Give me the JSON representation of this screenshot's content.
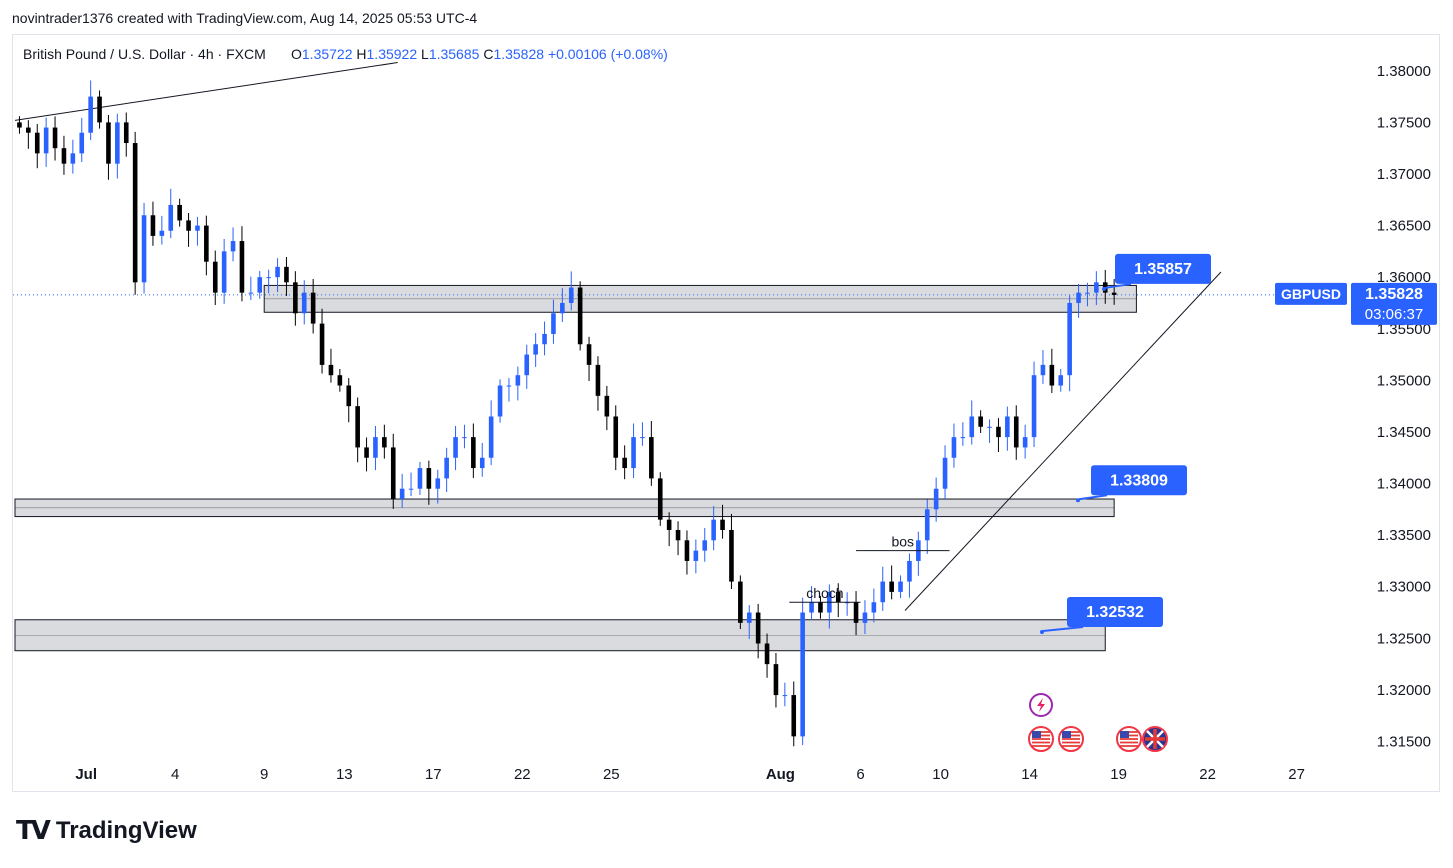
{
  "header": {
    "text": "novintrader1376 created with TradingView.com, Aug 14, 2025 05:53 UTC-4"
  },
  "footer": {
    "logo_mark": "TV",
    "logo_text": "TradingView"
  },
  "colors": {
    "up": "#2962ff",
    "down": "#000000",
    "zone_fill": "#d6d7db",
    "zone_stroke": "#131722",
    "label_bg": "#2962ff"
  },
  "chart_data": {
    "type": "candlestick",
    "symbol_line": "British Pound / U.S. Dollar · 4h · FXCM",
    "ohlc": {
      "o_label": "O",
      "o": "1.35722",
      "h_label": "H",
      "h": "1.35922",
      "l_label": "L",
      "l": "1.35685",
      "c_label": "C",
      "c": "1.35828",
      "change": "+0.00106 (+0.08%)"
    },
    "ylim": [
      1.3135,
      1.3825
    ],
    "y_ticks": [
      "1.38000",
      "1.37500",
      "1.37000",
      "1.36500",
      "1.36000",
      "1.35500",
      "1.35000",
      "1.34500",
      "1.34000",
      "1.33500",
      "1.33000",
      "1.32500",
      "1.32000",
      "1.31500"
    ],
    "x_ticks": [
      {
        "label": "Jul",
        "bold": true,
        "bar": 8
      },
      {
        "label": "4",
        "bold": false,
        "bar": 18
      },
      {
        "label": "9",
        "bold": false,
        "bar": 28
      },
      {
        "label": "13",
        "bold": false,
        "bar": 37
      },
      {
        "label": "17",
        "bold": false,
        "bar": 47
      },
      {
        "label": "22",
        "bold": false,
        "bar": 57
      },
      {
        "label": "25",
        "bold": false,
        "bar": 67
      },
      {
        "label": "Aug",
        "bold": true,
        "bar": 86
      },
      {
        "label": "6",
        "bold": false,
        "bar": 95
      },
      {
        "label": "10",
        "bold": false,
        "bar": 104
      },
      {
        "label": "14",
        "bold": false,
        "bar": 114
      },
      {
        "label": "19",
        "bold": false,
        "bar": 124
      },
      {
        "label": "22",
        "bold": false,
        "bar": 134
      },
      {
        "label": "27",
        "bold": false,
        "bar": 144
      }
    ],
    "bar_count": 158,
    "closes": [
      1.3745,
      1.374,
      1.372,
      1.3745,
      1.3725,
      1.371,
      1.372,
      1.374,
      1.3775,
      1.375,
      1.371,
      1.375,
      1.373,
      1.3595,
      1.366,
      1.364,
      1.3645,
      1.367,
      1.3655,
      1.3645,
      1.365,
      1.3615,
      1.3585,
      1.3625,
      1.3635,
      1.3585,
      1.3585,
      1.36,
      1.36,
      1.361,
      1.3595,
      1.3565,
      1.3585,
      1.3555,
      1.3515,
      1.3505,
      1.3495,
      1.3475,
      1.3435,
      1.3425,
      1.3445,
      1.3435,
      1.3385,
      1.3395,
      1.3395,
      1.3415,
      1.3395,
      1.3405,
      1.3425,
      1.3445,
      1.3445,
      1.3415,
      1.3425,
      1.3465,
      1.3495,
      1.3495,
      1.3505,
      1.3525,
      1.3535,
      1.3545,
      1.3565,
      1.3575,
      1.359,
      1.3535,
      1.3515,
      1.3485,
      1.3465,
      1.3425,
      1.3415,
      1.3445,
      1.3445,
      1.3405,
      1.3365,
      1.3355,
      1.3345,
      1.3325,
      1.3335,
      1.3345,
      1.3365,
      1.3355,
      1.3305,
      1.3265,
      1.3275,
      1.3245,
      1.3225,
      1.3195,
      1.3195,
      1.3155,
      1.3275,
      1.3285,
      1.3275,
      1.3295,
      1.3285,
      1.3285,
      1.3265,
      1.3275,
      1.3285,
      1.3305,
      1.3295,
      1.3305,
      1.3325,
      1.3345,
      1.3375,
      1.3395,
      1.3425,
      1.3445,
      1.3445,
      1.3465,
      1.3455,
      1.3455,
      1.3445,
      1.3465,
      1.3435,
      1.3445,
      1.3505,
      1.3515,
      1.3495,
      1.3505,
      1.3575,
      1.3585,
      1.3585,
      1.3595,
      1.3585,
      1.35828
    ],
    "zones": [
      {
        "id": "upper",
        "top": 1.3592,
        "bottom": 1.3566,
        "x_start_bar": 28,
        "x_end_bar": 126
      },
      {
        "id": "middle",
        "top": 1.3385,
        "bottom": 1.3368,
        "x_start_bar": 0,
        "x_end_bar": 123.5
      },
      {
        "id": "lower",
        "top": 1.3268,
        "bottom": 1.3238,
        "x_start_bar": 0,
        "x_end_bar": 122.5
      }
    ],
    "price_labels": [
      {
        "id": "label-1",
        "text": "1.35857",
        "value": 1.35857
      },
      {
        "id": "label-2",
        "text": "1.33809",
        "value": 1.33809
      },
      {
        "id": "label-3",
        "text": "1.32532",
        "value": 1.32532
      }
    ],
    "trendlines": [
      {
        "id": "uptrend",
        "x1_bar": 100,
        "y1": 1.3277,
        "x2_bar": 135.5,
        "y2": 1.3605
      },
      {
        "id": "top-line",
        "x1_bar": 0,
        "y1": 1.3752,
        "x2_bar": 43,
        "y2": 1.3808
      }
    ],
    "annotations": [
      {
        "id": "bos",
        "text": "bos",
        "value": 1.3335,
        "x1_bar": 94.5,
        "x2_bar": 105
      },
      {
        "id": "choch",
        "text": "choch",
        "value": 1.3285,
        "x1_bar": 87,
        "x2_bar": 95
      }
    ],
    "current": {
      "symbol": "GBPUSD",
      "price": "1.35828",
      "countdown": "03:06:37",
      "value": 1.35828
    },
    "event_icons": [
      "lightning-icon",
      "us-flag-icon",
      "us-flag-icon",
      "us-flag-icon",
      "uk-flag-icon"
    ]
  }
}
